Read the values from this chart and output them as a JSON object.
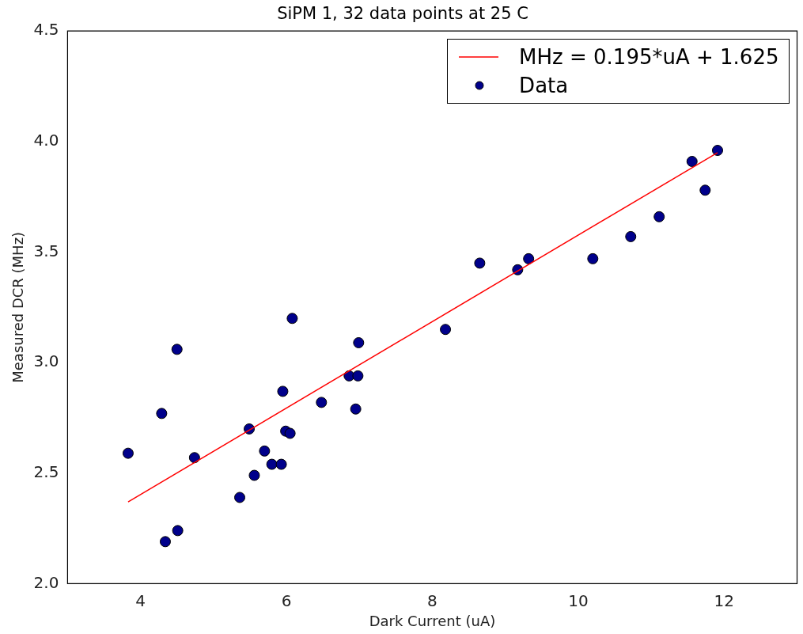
{
  "chart_data": {
    "type": "scatter",
    "title": "SiPM 1, 32 data points at 25 C",
    "xlabel": "Dark Current (uA)",
    "ylabel": "Measured DCR (MHz)",
    "xlim": [
      3,
      13
    ],
    "xticks": [
      4,
      6,
      8,
      10,
      12
    ],
    "ylim": [
      2.0,
      4.5
    ],
    "yticks": [
      {
        "value": 2.0,
        "label": "2.0"
      },
      {
        "value": 2.5,
        "label": "2.5"
      },
      {
        "value": 3.0,
        "label": "3.0"
      },
      {
        "value": 3.5,
        "label": "3.5"
      },
      {
        "value": 4.0,
        "label": "4.0"
      },
      {
        "value": 4.5,
        "label": "4.5"
      }
    ],
    "grid": false,
    "legend": "top right",
    "series": [
      {
        "name": "MHz = 0.195*uA + 1.625",
        "type": "line",
        "color": "#ff0000",
        "marker": "none",
        "line_style": "solid",
        "x": [
          3.83,
          11.91
        ],
        "values": [
          2.37,
          3.95
        ]
      },
      {
        "name": "Data",
        "type": "scatter",
        "color": "#00008b",
        "marker": "circle",
        "x": [
          3.83,
          4.29,
          4.5,
          4.34,
          4.51,
          4.74,
          5.36,
          5.49,
          5.56,
          5.7,
          5.8,
          5.93,
          5.95,
          5.99,
          6.05,
          6.08,
          6.48,
          6.86,
          6.98,
          6.95,
          6.99,
          8.18,
          8.65,
          9.17,
          9.32,
          10.2,
          10.72,
          11.11,
          11.56,
          11.74,
          11.91
        ],
        "values": [
          2.59,
          2.77,
          3.06,
          2.19,
          2.24,
          2.57,
          2.39,
          2.7,
          2.49,
          2.6,
          2.54,
          2.54,
          2.87,
          2.69,
          2.68,
          3.2,
          2.82,
          2.94,
          2.94,
          2.79,
          3.09,
          3.15,
          3.45,
          3.42,
          3.47,
          3.47,
          3.57,
          3.66,
          3.91,
          3.78,
          3.96
        ]
      }
    ]
  }
}
